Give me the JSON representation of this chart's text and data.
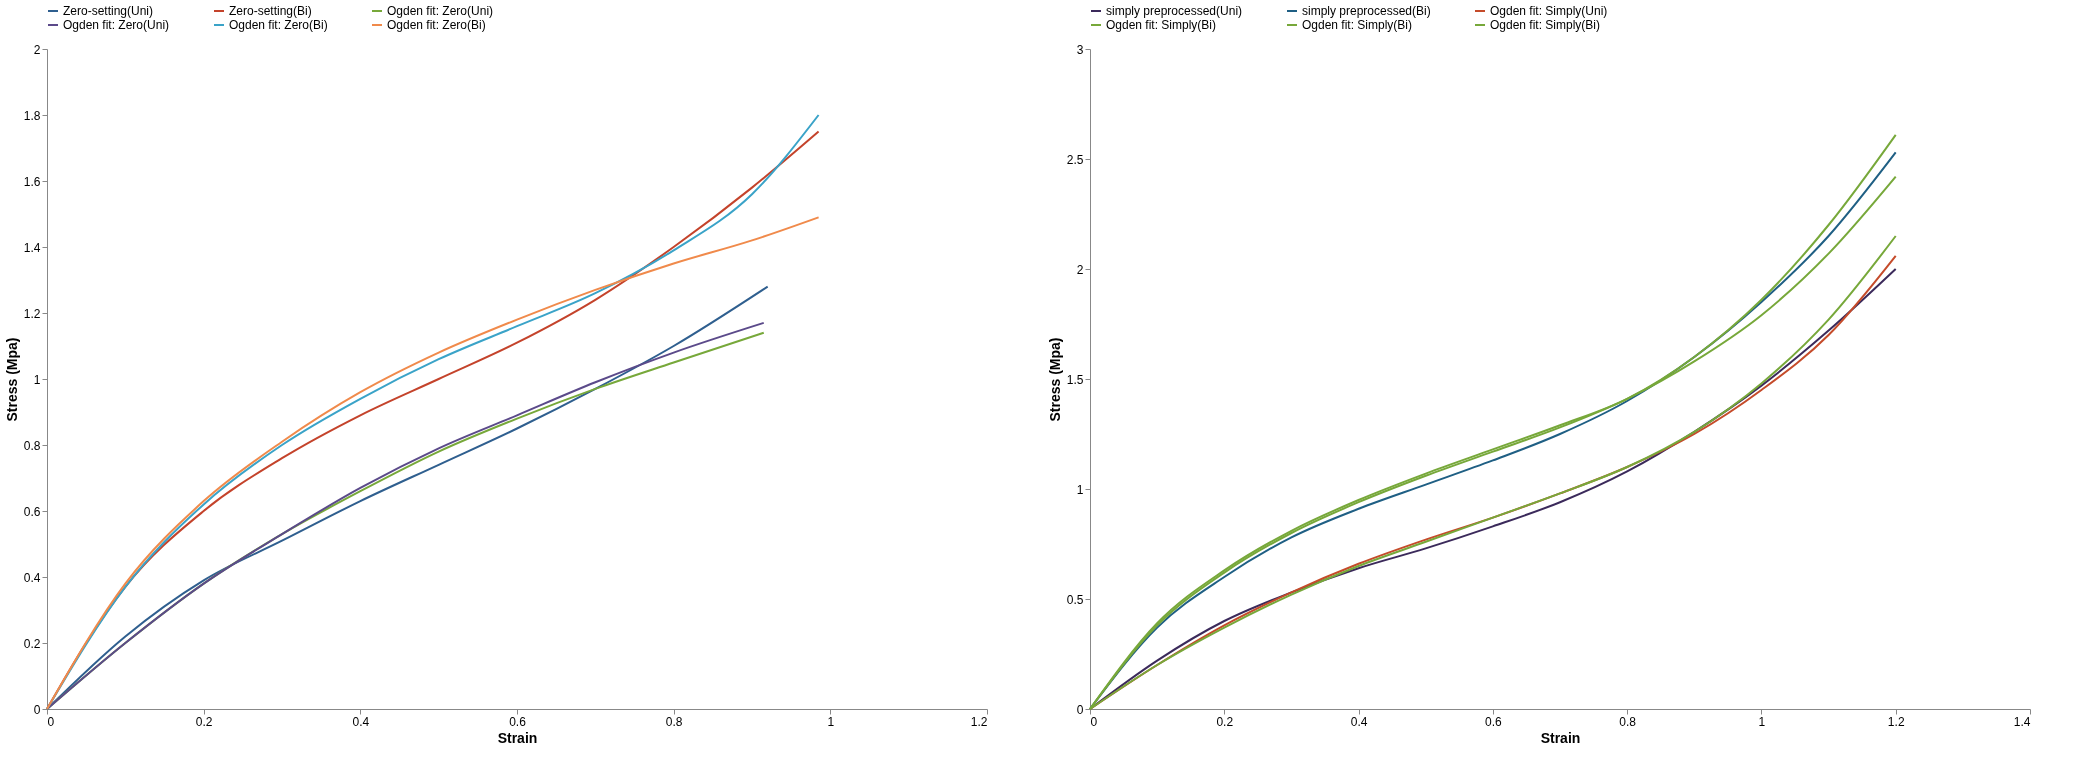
{
  "chart_data": [
    {
      "type": "line",
      "xlabel": "Strain",
      "ylabel": "Stress (Mpa)",
      "xlim": [
        0,
        1.2
      ],
      "ylim": [
        0,
        2
      ],
      "xticks": [
        0,
        0.2,
        0.4,
        0.6,
        0.8,
        1,
        1.2
      ],
      "yticks": [
        0,
        0.2,
        0.4,
        0.6,
        0.8,
        1,
        1.2,
        1.4,
        1.6,
        1.8,
        2
      ],
      "grid": false,
      "legend": "top",
      "series": [
        {
          "name": "Zero-setting(Uni)",
          "color": "#2f5f8f",
          "x": [
            0,
            0.1,
            0.2,
            0.3,
            0.4,
            0.5,
            0.6,
            0.7,
            0.8,
            0.92
          ],
          "values": [
            0,
            0.22,
            0.39,
            0.51,
            0.63,
            0.74,
            0.85,
            0.97,
            1.1,
            1.28
          ]
        },
        {
          "name": "Zero-setting(Bi)",
          "color": "#c4432b",
          "x": [
            0,
            0.05,
            0.1,
            0.2,
            0.3,
            0.4,
            0.5,
            0.6,
            0.7,
            0.8,
            0.9,
            0.985
          ],
          "values": [
            0,
            0.2,
            0.37,
            0.6,
            0.76,
            0.89,
            1.0,
            1.11,
            1.24,
            1.4,
            1.58,
            1.75
          ]
        },
        {
          "name": "Ogden fit: Zero(Uni)",
          "color": "#77a83a",
          "x": [
            0,
            0.1,
            0.2,
            0.3,
            0.4,
            0.5,
            0.6,
            0.7,
            0.8,
            0.915
          ],
          "values": [
            0,
            0.2,
            0.38,
            0.53,
            0.66,
            0.78,
            0.88,
            0.97,
            1.05,
            1.14
          ]
        },
        {
          "name": "Ogden fit: Zero(Uni)",
          "color": "#5b4a8a",
          "x": [
            0,
            0.1,
            0.2,
            0.3,
            0.4,
            0.5,
            0.6,
            0.7,
            0.8,
            0.915
          ],
          "values": [
            0,
            0.2,
            0.38,
            0.53,
            0.67,
            0.79,
            0.89,
            0.99,
            1.08,
            1.17
          ]
        },
        {
          "name": "Ogden fit: Zero(Bi)",
          "color": "#3aa3c8",
          "x": [
            0,
            0.1,
            0.2,
            0.3,
            0.4,
            0.5,
            0.6,
            0.7,
            0.8,
            0.9,
            0.985
          ],
          "values": [
            0,
            0.37,
            0.62,
            0.8,
            0.94,
            1.06,
            1.16,
            1.26,
            1.39,
            1.56,
            1.8
          ]
        },
        {
          "name": "Ogden fit: Zero(Bi)",
          "color": "#f08a4b",
          "x": [
            0,
            0.1,
            0.2,
            0.3,
            0.4,
            0.5,
            0.6,
            0.7,
            0.8,
            0.9,
            0.985
          ],
          "values": [
            0,
            0.38,
            0.63,
            0.81,
            0.96,
            1.08,
            1.18,
            1.27,
            1.35,
            1.42,
            1.49
          ]
        }
      ]
    },
    {
      "type": "line",
      "xlabel": "Strain",
      "ylabel": "Stress (Mpa)",
      "xlim": [
        0,
        1.4
      ],
      "ylim": [
        0,
        3
      ],
      "xticks": [
        0,
        0.2,
        0.4,
        0.6,
        0.8,
        1,
        1.2,
        1.4
      ],
      "yticks": [
        0,
        0.5,
        1,
        1.5,
        2,
        2.5,
        3
      ],
      "grid": false,
      "legend": "top",
      "series": [
        {
          "name": "simply preprocessed(Uni)",
          "color": "#3b2a5b",
          "x": [
            0,
            0.1,
            0.2,
            0.3,
            0.4,
            0.5,
            0.6,
            0.7,
            0.8,
            0.9,
            1.0,
            1.1,
            1.2
          ],
          "values": [
            0,
            0.22,
            0.4,
            0.53,
            0.64,
            0.73,
            0.83,
            0.94,
            1.08,
            1.26,
            1.47,
            1.72,
            2.0
          ]
        },
        {
          "name": "simply preprocessed(Bi)",
          "color": "#1f5f84",
          "x": [
            0,
            0.1,
            0.2,
            0.3,
            0.4,
            0.5,
            0.6,
            0.7,
            0.8,
            0.9,
            1.0,
            1.1,
            1.2
          ],
          "values": [
            0,
            0.37,
            0.6,
            0.78,
            0.91,
            1.02,
            1.13,
            1.25,
            1.4,
            1.6,
            1.85,
            2.15,
            2.53
          ]
        },
        {
          "name": "Ogden fit: Simply(Uni)",
          "color": "#c54b2a",
          "x": [
            0,
            0.1,
            0.2,
            0.3,
            0.4,
            0.5,
            0.6,
            0.7,
            0.8,
            0.9,
            1.0,
            1.1,
            1.2
          ],
          "values": [
            0,
            0.2,
            0.38,
            0.53,
            0.66,
            0.77,
            0.87,
            0.98,
            1.1,
            1.25,
            1.45,
            1.7,
            2.06
          ]
        },
        {
          "name": "Ogden fit: Simply(Bi)",
          "color": "#77a83a",
          "x": [
            0,
            0.1,
            0.2,
            0.3,
            0.4,
            0.5,
            0.6,
            0.7,
            0.8,
            0.9,
            1.0,
            1.1,
            1.2
          ],
          "values": [
            0,
            0.38,
            0.62,
            0.8,
            0.94,
            1.06,
            1.17,
            1.28,
            1.41,
            1.58,
            1.79,
            2.07,
            2.42
          ]
        },
        {
          "name": "Ogden fit: Simply(Bi)",
          "color": "#77a83a",
          "x": [
            0,
            0.1,
            0.2,
            0.3,
            0.4,
            0.5,
            0.6,
            0.7,
            0.8,
            0.9,
            1.0,
            1.1,
            1.2
          ],
          "values": [
            0,
            0.39,
            0.63,
            0.81,
            0.95,
            1.07,
            1.18,
            1.29,
            1.41,
            1.6,
            1.86,
            2.2,
            2.61
          ]
        },
        {
          "name": "Ogden fit: Simply(Bi)",
          "color": "#77a83a",
          "x": [
            0,
            0.1,
            0.2,
            0.3,
            0.4,
            0.5,
            0.6,
            0.7,
            0.8,
            0.9,
            1.0,
            1.1,
            1.2
          ],
          "values": [
            0,
            0.2,
            0.37,
            0.52,
            0.65,
            0.76,
            0.87,
            0.98,
            1.1,
            1.26,
            1.48,
            1.77,
            2.15
          ]
        }
      ]
    }
  ]
}
